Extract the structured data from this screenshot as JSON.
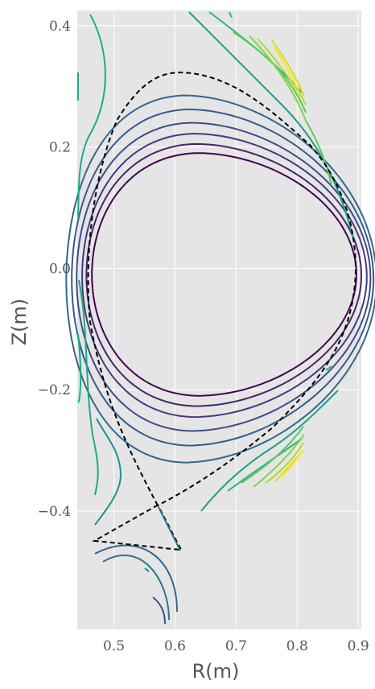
{
  "chart_data": {
    "type": "line",
    "title": "",
    "xlabel": "R(m)",
    "ylabel": "Z(m)",
    "xlim": [
      0.44,
      0.905
    ],
    "ylim": [
      -0.595,
      0.425
    ],
    "xticks": [
      0.5,
      0.6,
      0.7,
      0.8,
      0.9
    ],
    "xtick_labels": [
      "0.5",
      "0.6",
      "0.7",
      "0.8",
      "0.9"
    ],
    "yticks": [
      -0.4,
      -0.2,
      0.0,
      0.2,
      0.4
    ],
    "ytick_labels": [
      "−0.4",
      "−0.2",
      "0.0",
      "0.2",
      "0.4"
    ],
    "grid": true,
    "background": "#e5e5e5",
    "grid_color": "#ffffff",
    "colormap": "viridis",
    "closed_contours": [
      {
        "center": [
          0.662,
          -0.01
        ],
        "r_in": 0.198,
        "r_out": 0.235,
        "top": 0.19,
        "bottom": -0.21,
        "tri": 0.11,
        "color": "#440154"
      },
      {
        "center": [
          0.662,
          -0.012
        ],
        "r_in": 0.207,
        "r_out": 0.243,
        "top": 0.205,
        "bottom": -0.227,
        "tri": 0.12,
        "color": "#46256a"
      },
      {
        "center": [
          0.662,
          -0.014
        ],
        "r_in": 0.214,
        "r_out": 0.252,
        "top": 0.222,
        "bottom": -0.245,
        "tri": 0.13,
        "color": "#443a83"
      },
      {
        "center": [
          0.661,
          -0.016
        ],
        "r_in": 0.222,
        "r_out": 0.259,
        "top": 0.24,
        "bottom": -0.268,
        "tri": 0.14,
        "color": "#3e4c8a"
      },
      {
        "center": [
          0.66,
          -0.018
        ],
        "r_in": 0.229,
        "r_out": 0.265,
        "top": 0.262,
        "bottom": -0.292,
        "tri": 0.15,
        "color": "#37598c"
      },
      {
        "center": [
          0.658,
          -0.02
        ],
        "r_in": 0.236,
        "r_out": 0.272,
        "top": 0.285,
        "bottom": -0.32,
        "tri": 0.165,
        "color": "#31688e"
      }
    ],
    "separatrix": {
      "style": "dashed",
      "color": "#000000",
      "x_point": [
        0.572,
        -0.39
      ],
      "lower_triangle": [
        [
          0.572,
          -0.39
        ],
        [
          0.468,
          -0.449
        ],
        [
          0.61,
          -0.464
        ]
      ]
    },
    "legs": [
      {
        "points": [
          [
            0.472,
            -0.43
          ],
          [
            0.505,
            -0.355
          ]
        ],
        "color": "#2a788e"
      },
      {
        "points": [
          [
            0.47,
            -0.475
          ],
          [
            0.59,
            -0.455
          ]
        ],
        "color": "#2a788e"
      },
      {
        "points": [
          [
            0.53,
            -0.495
          ],
          [
            0.615,
            -0.595
          ]
        ],
        "color": "#23888e"
      }
    ]
  }
}
